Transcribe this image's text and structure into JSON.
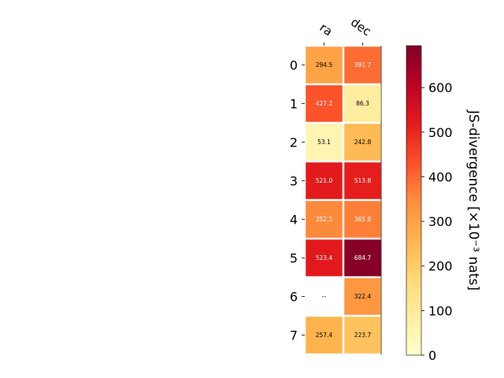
{
  "chart_data": {
    "type": "heatmap",
    "x_categories": [
      "ra",
      "dec"
    ],
    "y_categories": [
      "0",
      "1",
      "2",
      "3",
      "4",
      "5",
      "6",
      "7"
    ],
    "values": [
      [
        294.5,
        391.7
      ],
      [
        427.2,
        86.3
      ],
      [
        53.1,
        242.8
      ],
      [
        521.0,
        513.8
      ],
      [
        352.5,
        365.8
      ],
      [
        523.4,
        684.7
      ],
      [
        null,
        322.4
      ],
      [
        257.4,
        223.7
      ]
    ],
    "cell_labels": [
      [
        "294.5",
        "391.7"
      ],
      [
        "427.2",
        "86.3"
      ],
      [
        "53.1",
        "242.8"
      ],
      [
        "521.0",
        "513.8"
      ],
      [
        "352.5",
        "365.8"
      ],
      [
        "523.4",
        "684.7"
      ],
      [
        "--",
        "322.4"
      ],
      [
        "257.4",
        "223.7"
      ]
    ],
    "missing_label": "--",
    "colormap": "YlOrRd",
    "colorbar": {
      "label": "JS-divergence [×10⁻³ nats]",
      "range": [
        0,
        694
      ],
      "ticks": [
        0,
        100,
        200,
        300,
        400,
        500,
        600
      ],
      "tick_labels": [
        "0",
        "100",
        "200",
        "300",
        "400",
        "500",
        "600"
      ]
    },
    "x_axis_position": "top",
    "grid": false,
    "title": "",
    "xlabel": "",
    "ylabel": ""
  }
}
